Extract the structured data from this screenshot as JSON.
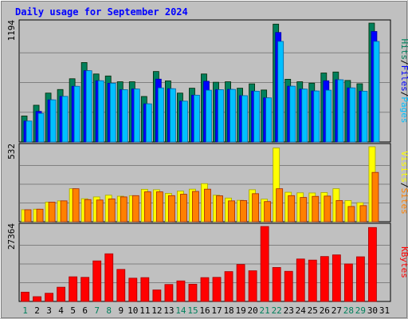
{
  "colors": {
    "background": "#C0C0C0",
    "grid": "#808080",
    "title": "#0000FF",
    "hits": "#00805C",
    "files": "#0000FF",
    "pages": "#00C0FF",
    "visits": "#FFFF00",
    "sites": "#FF8000",
    "kbytes": "#FF0000",
    "weekend_label": "#00805C",
    "weekday_label": "#000000"
  },
  "chart_data": {
    "type": "bar",
    "title": "Daily usage for September 2024",
    "days": [
      "1",
      "2",
      "3",
      "4",
      "5",
      "6",
      "7",
      "8",
      "9",
      "10",
      "11",
      "12",
      "13",
      "14",
      "15",
      "16",
      "17",
      "18",
      "19",
      "20",
      "21",
      "22",
      "23",
      "24",
      "25",
      "26",
      "27",
      "28",
      "29",
      "30",
      "31"
    ],
    "weekend_days": [
      1,
      7,
      8,
      14,
      15,
      21,
      22,
      28,
      29
    ],
    "panels": [
      {
        "name": "hits-files-pages",
        "max_label": "1194",
        "ymax": 1194,
        "right_label": [
          "Pages",
          "Files",
          "Hits"
        ],
        "series": [
          {
            "name": "Hits",
            "color_key": "hits",
            "values": [
              261,
              369,
              491,
              527,
              635,
              798,
              683,
              663,
              605,
              605,
              457,
              708,
              614,
              491,
              540,
              683,
              600,
              605,
              540,
              584,
              522,
              1184,
              630,
              605,
              591,
              693,
              703,
              618,
              585,
              1194,
              null
            ]
          },
          {
            "name": "Files",
            "color_key": "files",
            "values": [
              210,
              307,
              423,
              458,
              559,
              716,
              615,
              590,
              525,
              532,
              383,
              631,
              535,
              410,
              470,
              610,
              525,
              528,
              465,
              510,
              443,
              1100,
              560,
              531,
              512,
              615,
              625,
              543,
              510,
              1110,
              null
            ]
          },
          {
            "name": "Pages",
            "color_key": "pages",
            "values": [
              210,
              287,
              423,
              458,
              559,
              716,
              615,
              590,
              525,
              532,
              383,
              543,
              535,
              410,
              470,
              520,
              525,
              528,
              465,
              510,
              443,
              1010,
              560,
              531,
              512,
              520,
              625,
              543,
              510,
              1010,
              null
            ]
          }
        ]
      },
      {
        "name": "visits-sites",
        "max_label": "532",
        "ymax": 532,
        "right_label": [
          "Sites",
          "Visits"
        ],
        "series": [
          {
            "name": "Visits",
            "color_key": "visits",
            "values": [
              85,
              89,
              139,
              148,
              234,
              163,
              176,
              188,
              181,
              185,
              230,
              227,
              201,
              217,
              231,
              270,
              188,
              168,
              152,
              227,
              160,
              523,
              209,
              205,
              204,
              207,
              234,
              150,
              135,
              532,
              null
            ]
          },
          {
            "name": "Sites",
            "color_key": "sites",
            "values": [
              85,
              89,
              139,
              148,
              234,
              157,
              154,
              162,
              176,
              185,
              212,
              212,
              185,
              195,
              215,
              231,
              184,
              148,
              150,
              199,
              143,
              234,
              185,
              172,
              180,
              182,
              150,
              108,
              114,
              350,
              null
            ]
          }
        ]
      },
      {
        "name": "kbytes",
        "max_label": "27364",
        "ymax": 27364,
        "right_label": [
          "KBytes"
        ],
        "series": [
          {
            "name": "KBytes",
            "color_key": "kbytes",
            "values": [
              3400,
              1750,
              3000,
              5200,
              9000,
              8800,
              14800,
              17400,
              11700,
              8500,
              8700,
              4200,
              6200,
              7500,
              6300,
              8700,
              8800,
              10900,
              13500,
              11200,
              27364,
              12400,
              11000,
              15500,
              15100,
              16400,
              17000,
              13700,
              16300,
              27000,
              null
            ]
          }
        ]
      }
    ]
  }
}
